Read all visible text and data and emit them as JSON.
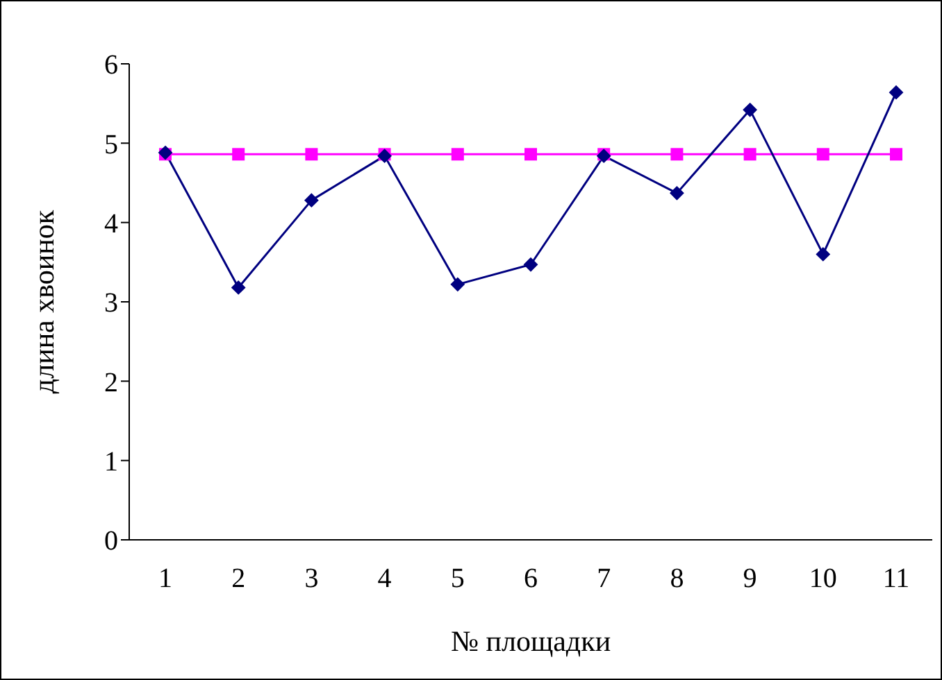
{
  "chart_data": {
    "type": "line",
    "xlabel": "№ площадки",
    "ylabel": "длина хвоинок",
    "categories": [
      "1",
      "2",
      "3",
      "4",
      "5",
      "6",
      "7",
      "8",
      "9",
      "10",
      "11"
    ],
    "series": [
      {
        "color": "#000080",
        "marker": "diamond",
        "values": [
          4.88,
          3.18,
          4.28,
          4.84,
          3.22,
          3.47,
          4.84,
          4.37,
          5.42,
          3.6,
          5.64
        ]
      },
      {
        "color": "#ff00ff",
        "marker": "square",
        "values": [
          4.86,
          4.86,
          4.86,
          4.86,
          4.86,
          4.86,
          4.86,
          4.86,
          4.86,
          4.86,
          4.86
        ]
      }
    ],
    "ylim": [
      0,
      6
    ],
    "yticks": [
      0,
      1,
      2,
      3,
      4,
      5,
      6
    ],
    "grid": false,
    "legend": false
  }
}
